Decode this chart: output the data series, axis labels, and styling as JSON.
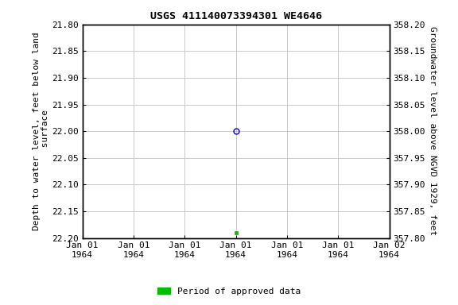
{
  "title": "USGS 411140073394301 WE4646",
  "left_ylabel": "Depth to water level, feet below land\n surface",
  "right_ylabel": "Groundwater level above NGVD 1929, feet",
  "ylim_left": [
    21.8,
    22.2
  ],
  "ylim_right": [
    357.8,
    358.2
  ],
  "yticks_left": [
    21.8,
    21.85,
    21.9,
    21.95,
    22.0,
    22.05,
    22.1,
    22.15,
    22.2
  ],
  "yticks_right": [
    357.8,
    357.85,
    357.9,
    357.95,
    358.0,
    358.05,
    358.1,
    358.15,
    358.2
  ],
  "xtick_labels": [
    "Jan 01\n1964",
    "Jan 01\n1964",
    "Jan 01\n1964",
    "Jan 01\n1964",
    "Jan 01\n1964",
    "Jan 01\n1964",
    "Jan 02\n1964"
  ],
  "point_blue_x": 3.0,
  "point_blue_y": 22.0,
  "point_green_x": 3.0,
  "point_green_y": 22.19,
  "xlim": [
    0,
    6
  ],
  "xtick_positions": [
    0,
    1,
    2,
    3,
    4,
    5,
    6
  ],
  "background_color": "#ffffff",
  "grid_color": "#c8c8c8",
  "title_color": "#000000",
  "blue_marker_color": "#0000cc",
  "green_marker_color": "#00bb00",
  "legend_label": "Period of approved data",
  "font_family": "Courier New",
  "title_fontsize": 9.5,
  "tick_fontsize": 8,
  "ylabel_fontsize": 8
}
